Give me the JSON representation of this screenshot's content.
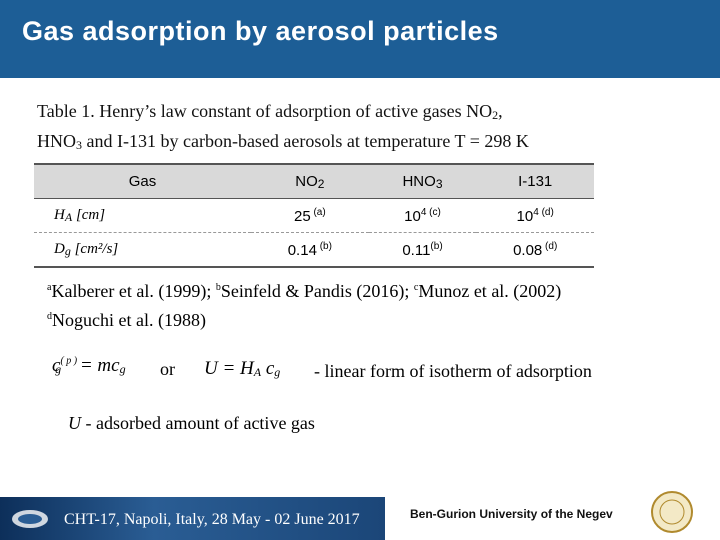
{
  "header": {
    "title": "Gas adsorption by aerosol particles"
  },
  "caption": [
    "Table 1. Henry’s law constant of adsorption of active gases NO",
    "2",
    ",",
    "HNO",
    "3",
    " and I-131 by carbon-based aerosols at temperature T = 298 K"
  ],
  "table": {
    "header": [
      {
        "text": "Gas"
      },
      {
        "text": "NO",
        "sub": "2"
      },
      {
        "text": "HNO",
        "sub": "3"
      },
      {
        "text": "I-131"
      }
    ],
    "rows": [
      [
        {
          "text": "H",
          "sub": "A",
          "rest": " [cm]"
        },
        {
          "text": "25",
          "sup": " (a)"
        },
        {
          "text": "10",
          "sup": "4 (c)"
        },
        {
          "text": "10",
          "sup": "4 (d)"
        }
      ],
      [
        {
          "text": "D",
          "sub": "g",
          "rest": " [cm²/s]"
        },
        {
          "text": "0.14",
          "sup": " (b)"
        },
        {
          "text": "0.11",
          "sup": "(b)"
        },
        {
          "text": "0.08",
          "sup": " (d)"
        }
      ]
    ]
  },
  "footnotes": [
    [
      {
        "mark": "a",
        "text": "Kalberer et al. (1999); "
      },
      {
        "mark": "b",
        "text": "Seinfeld & Pandis (2016); "
      },
      {
        "mark": "c",
        "text": "Munoz et al. (2002)"
      }
    ],
    [
      {
        "mark": "d",
        "text": "Noguchi et al. (1988)"
      }
    ]
  ],
  "equation1": {
    "main": "c",
    "sup": "( p )",
    "sub": "g",
    "rest": " = mc",
    "sub2": "g"
  },
  "or": "or",
  "equation2": {
    "main": "U = H",
    "sub": "A",
    "rest": " c",
    "sub2": "g"
  },
  "equation_note": "-  linear form of isotherm of adsorption",
  "definition": {
    "symbol": "U",
    "text": " - adsorbed amount of active gas"
  },
  "footer": {
    "conference": "CHT-17, Napoli, Italy, 28 May - 02 June 2017",
    "university": "Ben-Gurion University of the Negev"
  }
}
